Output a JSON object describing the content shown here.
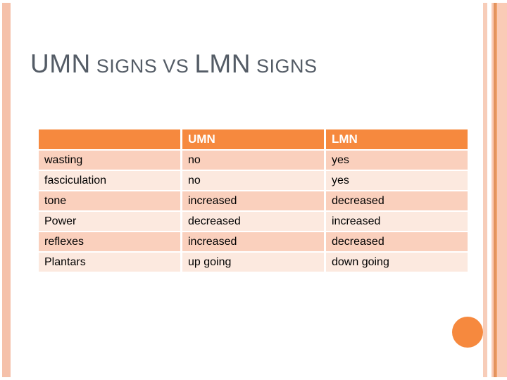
{
  "slide": {
    "title": {
      "parts": [
        {
          "text": "UMN",
          "size": "big"
        },
        {
          "text": " SIGNS VS ",
          "size": "small"
        },
        {
          "text": "LMN",
          "size": "big"
        },
        {
          "text": " SIGNS",
          "size": "small"
        }
      ],
      "full_text": "UMN SIGNS VS LMN SIGNS"
    }
  },
  "table": {
    "headers": [
      "",
      "UMN",
      "LMN"
    ],
    "rows": [
      [
        "wasting",
        "no",
        "yes"
      ],
      [
        "fasciculation",
        "no",
        "yes"
      ],
      [
        "tone",
        "increased",
        "decreased"
      ],
      [
        "Power",
        "decreased",
        "increased"
      ],
      [
        "reflexes",
        "increased",
        "decreased"
      ],
      [
        "Plantars",
        "up going",
        "down going"
      ]
    ]
  },
  "colors": {
    "accent": "#F6893E",
    "row_odd": "#FAD0BD",
    "row_even": "#FCE9DF",
    "stripe_bar": "#F5C1AA",
    "stripe_light": "#F7CDB9",
    "band": "#FACBB6",
    "stripe_dark_line": "#E2925D",
    "stripe_mid_line": "#F0A26C",
    "title_color": "#545C66"
  }
}
